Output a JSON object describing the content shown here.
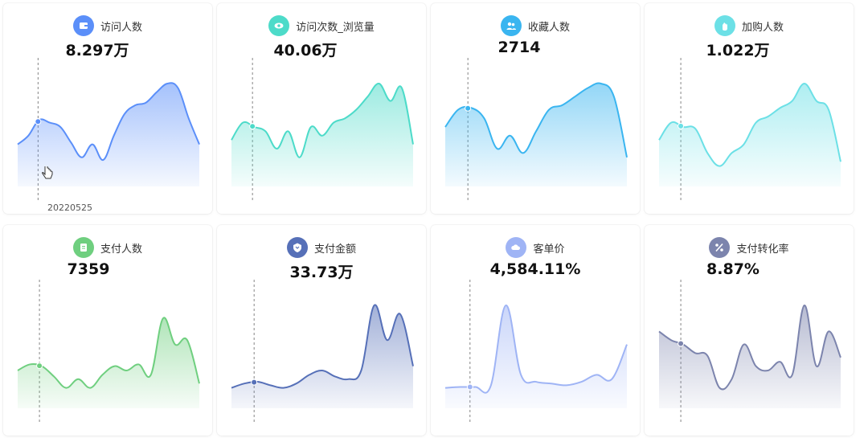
{
  "hover_date": "20220525",
  "cards": [
    {
      "label": "访问人数",
      "value": "8.297万",
      "color": "#5b8ff9",
      "icon_bg": "#5b8ff9",
      "icon": "wallet-icon",
      "series": [
        0.3,
        0.4,
        0.58,
        0.55,
        0.5,
        0.32,
        0.15,
        0.3,
        0.12,
        0.4,
        0.65,
        0.75,
        0.78,
        0.9,
        1.0,
        0.95,
        0.6,
        0.3
      ]
    },
    {
      "label": "访问次数_浏览量",
      "value": "40.06万",
      "color": "#4ddbc9",
      "icon_bg": "#4ddbc9",
      "icon": "eye-icon",
      "series": [
        0.35,
        0.55,
        0.5,
        0.45,
        0.25,
        0.45,
        0.15,
        0.5,
        0.4,
        0.55,
        0.6,
        0.7,
        0.85,
        1.0,
        0.8,
        0.95,
        0.3
      ]
    },
    {
      "label": "收藏人数",
      "value": "2714",
      "color": "#3ab5f0",
      "icon_bg": "#3ab5f0",
      "icon": "users-icon",
      "series": [
        0.5,
        0.7,
        0.72,
        0.6,
        0.25,
        0.4,
        0.2,
        0.45,
        0.7,
        0.75,
        0.85,
        0.95,
        1.0,
        0.85,
        0.15
      ]
    },
    {
      "label": "加购人数",
      "value": "1.022万",
      "color": "#6ce0e6",
      "icon_bg": "#6ce0e6",
      "icon": "hand-icon",
      "series": [
        0.35,
        0.55,
        0.5,
        0.48,
        0.2,
        0.05,
        0.2,
        0.3,
        0.55,
        0.62,
        0.72,
        0.8,
        1.0,
        0.8,
        0.7,
        0.1
      ]
    },
    {
      "label": "支付人数",
      "value": "7359",
      "color": "#6fcf7f",
      "icon_bg": "#6fcf7f",
      "icon": "clipboard-icon",
      "series": [
        0.25,
        0.32,
        0.3,
        0.18,
        0.05,
        0.15,
        0.05,
        0.2,
        0.3,
        0.25,
        0.32,
        0.2,
        0.85,
        0.55,
        0.6,
        0.1
      ]
    },
    {
      "label": "支付金额",
      "value": "33.73万",
      "color": "#5670b8",
      "icon_bg": "#5670b8",
      "icon": "shield-icon",
      "series": [
        0.05,
        0.1,
        0.12,
        0.08,
        0.05,
        0.1,
        0.2,
        0.25,
        0.18,
        0.15,
        0.25,
        1.0,
        0.6,
        0.9,
        0.3
      ]
    },
    {
      "label": "客单价",
      "value": "4,584.11%",
      "color": "#9fb4f5",
      "icon_bg": "#9fb4f5",
      "icon": "cloud-icon",
      "series": [
        0.05,
        0.06,
        0.06,
        0.07,
        1.0,
        0.2,
        0.12,
        0.1,
        0.08,
        0.12,
        0.2,
        0.15,
        0.55
      ]
    },
    {
      "label": "支付转化率",
      "value": "8.87%",
      "color": "#7c84ad",
      "icon_bg": "#7c84ad",
      "icon": "percent-icon",
      "series": [
        0.7,
        0.6,
        0.55,
        0.45,
        0.42,
        0.05,
        0.15,
        0.55,
        0.3,
        0.25,
        0.35,
        0.2,
        1.0,
        0.3,
        0.7,
        0.4
      ]
    }
  ]
}
